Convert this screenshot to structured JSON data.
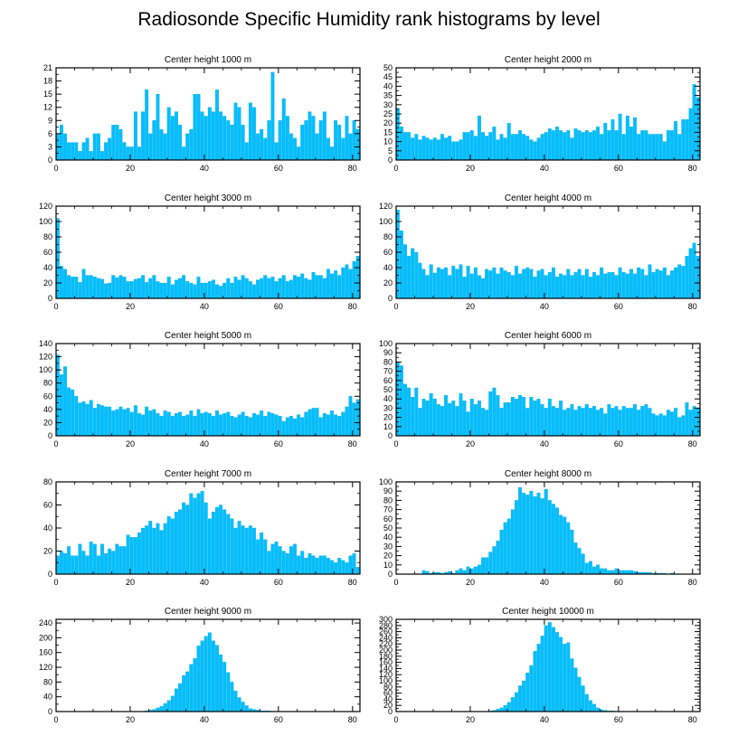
{
  "title": "Radiosonde Specific Humidity rank histograms by level",
  "colors": {
    "bar": "#00bfff",
    "bar_edge": "#0aa6dd",
    "axis": "#000000"
  },
  "chart_data": [
    {
      "type": "bar",
      "title": "Center height 1000 m",
      "xlim": [
        0,
        82
      ],
      "ylim": [
        0,
        21
      ],
      "xticks": [
        0,
        20,
        40,
        60,
        80
      ],
      "yticks": [
        0,
        3,
        6,
        9,
        12,
        15,
        18,
        21
      ],
      "values": [
        6,
        8,
        6,
        4,
        4,
        4,
        2,
        4,
        5,
        2,
        6,
        6,
        2,
        4,
        5,
        8,
        8,
        7,
        4,
        3,
        3,
        11,
        3,
        11,
        16,
        6,
        9,
        15,
        7,
        6,
        12,
        10,
        11,
        8,
        3,
        6,
        7,
        15,
        15,
        11,
        10,
        12,
        11,
        16,
        11,
        10,
        9,
        8,
        13,
        12,
        8,
        4,
        13,
        12,
        6,
        7,
        5,
        9,
        20,
        4,
        9,
        14,
        10,
        6,
        5,
        3,
        8,
        9,
        11,
        10,
        6,
        9,
        11,
        5,
        3,
        9,
        8,
        5,
        10,
        6,
        9,
        7
      ]
    },
    {
      "type": "bar",
      "title": "Center height 2000 m",
      "xlim": [
        0,
        82
      ],
      "ylim": [
        0,
        50
      ],
      "xticks": [
        0,
        20,
        40,
        60,
        80
      ],
      "yticks": [
        0,
        5,
        10,
        15,
        20,
        25,
        30,
        35,
        40,
        45,
        50
      ],
      "values": [
        28,
        18,
        15,
        15,
        12,
        14,
        11,
        13,
        12,
        11,
        12,
        11,
        14,
        12,
        13,
        10,
        10,
        11,
        15,
        15,
        16,
        13,
        24,
        15,
        13,
        15,
        18,
        11,
        14,
        12,
        20,
        14,
        14,
        16,
        14,
        13,
        11,
        10,
        12,
        14,
        15,
        17,
        16,
        18,
        16,
        15,
        16,
        12,
        17,
        16,
        15,
        16,
        15,
        16,
        18,
        14,
        20,
        16,
        22,
        16,
        25,
        14,
        24,
        18,
        23,
        14,
        16,
        16,
        14,
        14,
        14,
        14,
        10,
        16,
        16,
        21,
        14,
        22,
        22,
        28,
        41,
        34
      ]
    },
    {
      "type": "bar",
      "title": "Center height 3000 m",
      "xlim": [
        0,
        82
      ],
      "ylim": [
        0,
        120
      ],
      "xticks": [
        0,
        20,
        40,
        60,
        80
      ],
      "yticks": [
        0,
        20,
        40,
        60,
        80,
        100,
        120
      ],
      "values": [
        104,
        42,
        38,
        30,
        28,
        28,
        21,
        38,
        30,
        30,
        28,
        26,
        25,
        19,
        20,
        30,
        27,
        30,
        28,
        22,
        22,
        25,
        26,
        30,
        21,
        26,
        30,
        22,
        20,
        20,
        28,
        18,
        24,
        26,
        30,
        22,
        20,
        18,
        28,
        20,
        20,
        22,
        24,
        18,
        16,
        20,
        26,
        20,
        28,
        24,
        30,
        26,
        22,
        18,
        24,
        26,
        30,
        26,
        28,
        22,
        26,
        30,
        22,
        24,
        30,
        28,
        32,
        26,
        24,
        34,
        30,
        30,
        26,
        38,
        32,
        36,
        30,
        40,
        44,
        38,
        48,
        55
      ]
    },
    {
      "type": "bar",
      "title": "Center height 4000 m",
      "xlim": [
        0,
        82
      ],
      "ylim": [
        0,
        120
      ],
      "xticks": [
        0,
        20,
        40,
        60,
        80
      ],
      "yticks": [
        0,
        20,
        40,
        60,
        80,
        100,
        120
      ],
      "values": [
        115,
        88,
        70,
        55,
        65,
        60,
        46,
        38,
        30,
        44,
        33,
        40,
        38,
        40,
        30,
        42,
        38,
        44,
        28,
        42,
        32,
        40,
        30,
        26,
        38,
        36,
        40,
        32,
        40,
        36,
        34,
        30,
        42,
        32,
        38,
        40,
        38,
        28,
        36,
        38,
        30,
        34,
        40,
        28,
        32,
        30,
        38,
        30,
        34,
        38,
        30,
        38,
        28,
        34,
        30,
        40,
        32,
        34,
        34,
        30,
        40,
        34,
        32,
        38,
        32,
        40,
        38,
        30,
        44,
        34,
        38,
        36,
        40,
        30,
        36,
        40,
        44,
        42,
        55,
        65,
        72,
        55
      ]
    },
    {
      "type": "bar",
      "title": "Center height 5000 m",
      "xlim": [
        0,
        82
      ],
      "ylim": [
        0,
        140
      ],
      "xticks": [
        0,
        20,
        40,
        60,
        80
      ],
      "yticks": [
        0,
        20,
        40,
        60,
        80,
        100,
        120,
        140
      ],
      "values": [
        123,
        93,
        105,
        73,
        70,
        60,
        50,
        52,
        48,
        54,
        42,
        48,
        46,
        44,
        44,
        38,
        40,
        44,
        40,
        42,
        36,
        46,
        34,
        32,
        44,
        38,
        40,
        34,
        30,
        38,
        36,
        30,
        34,
        36,
        30,
        32,
        38,
        30,
        40,
        34,
        36,
        34,
        30,
        38,
        32,
        34,
        36,
        30,
        28,
        32,
        36,
        30,
        28,
        34,
        32,
        38,
        30,
        36,
        34,
        32,
        30,
        22,
        28,
        30,
        26,
        32,
        28,
        36,
        40,
        42,
        42,
        28,
        34,
        32,
        38,
        32,
        30,
        36,
        44,
        60,
        50,
        55
      ]
    },
    {
      "type": "bar",
      "title": "Center height 6000 m",
      "xlim": [
        0,
        82
      ],
      "ylim": [
        0,
        100
      ],
      "xticks": [
        0,
        20,
        40,
        60,
        80
      ],
      "yticks": [
        0,
        10,
        20,
        30,
        40,
        50,
        60,
        70,
        80,
        90,
        100
      ],
      "values": [
        80,
        76,
        56,
        52,
        42,
        52,
        30,
        40,
        38,
        46,
        40,
        34,
        32,
        44,
        35,
        38,
        32,
        46,
        38,
        26,
        40,
        34,
        38,
        30,
        28,
        48,
        52,
        44,
        30,
        36,
        36,
        42,
        40,
        44,
        42,
        30,
        42,
        38,
        40,
        34,
        30,
        40,
        32,
        30,
        38,
        28,
        30,
        34,
        28,
        32,
        30,
        34,
        30,
        32,
        28,
        30,
        24,
        34,
        30,
        32,
        28,
        32,
        30,
        30,
        34,
        28,
        32,
        34,
        30,
        24,
        22,
        24,
        22,
        28,
        26,
        30,
        20,
        22,
        36,
        28,
        32,
        30
      ]
    },
    {
      "type": "bar",
      "title": "Center height 7000 m",
      "xlim": [
        0,
        82
      ],
      "ylim": [
        0,
        80
      ],
      "xticks": [
        0,
        20,
        40,
        60,
        80
      ],
      "yticks": [
        0,
        20,
        40,
        60,
        80
      ],
      "values": [
        16,
        20,
        18,
        24,
        16,
        16,
        26,
        20,
        16,
        28,
        26,
        16,
        26,
        18,
        22,
        20,
        26,
        24,
        24,
        34,
        32,
        32,
        36,
        40,
        42,
        46,
        40,
        44,
        38,
        44,
        50,
        48,
        54,
        56,
        62,
        60,
        70,
        66,
        70,
        72,
        62,
        48,
        54,
        58,
        60,
        56,
        52,
        48,
        40,
        46,
        42,
        40,
        42,
        40,
        30,
        36,
        30,
        20,
        26,
        28,
        24,
        20,
        18,
        24,
        26,
        16,
        20,
        14,
        18,
        16,
        14,
        16,
        16,
        14,
        12,
        10,
        14,
        12,
        10,
        16,
        18,
        6
      ]
    },
    {
      "type": "bar",
      "title": "Center height 8000 m",
      "xlim": [
        0,
        82
      ],
      "ylim": [
        0,
        100
      ],
      "xticks": [
        0,
        20,
        40,
        60,
        80
      ],
      "yticks": [
        0,
        10,
        20,
        30,
        40,
        50,
        60,
        70,
        80,
        90,
        100
      ],
      "values": [
        0,
        0,
        0,
        0,
        0,
        0,
        0,
        4,
        3,
        1,
        2,
        2,
        1,
        2,
        3,
        1,
        4,
        6,
        4,
        8,
        6,
        8,
        10,
        18,
        18,
        24,
        30,
        36,
        48,
        56,
        60,
        70,
        80,
        94,
        88,
        86,
        90,
        84,
        88,
        82,
        92,
        80,
        76,
        72,
        64,
        62,
        56,
        48,
        34,
        28,
        22,
        12,
        14,
        8,
        10,
        6,
        6,
        4,
        4,
        6,
        4,
        4,
        4,
        4,
        3,
        2,
        2,
        2,
        2,
        1,
        1,
        1,
        1,
        0,
        1,
        0,
        0,
        0,
        0,
        0,
        0,
        0
      ]
    },
    {
      "type": "bar",
      "title": "Center height 9000 m",
      "xlim": [
        0,
        82
      ],
      "ylim": [
        0,
        250
      ],
      "xticks": [
        0,
        20,
        40,
        60,
        80
      ],
      "yticks": [
        0,
        40,
        80,
        120,
        160,
        200,
        240
      ],
      "values": [
        0,
        0,
        0,
        0,
        0,
        0,
        0,
        0,
        0,
        0,
        0,
        0,
        0,
        0,
        0,
        0,
        0,
        0,
        0,
        0,
        0,
        0,
        0,
        0,
        2,
        4,
        6,
        10,
        14,
        22,
        30,
        42,
        62,
        76,
        98,
        108,
        128,
        144,
        178,
        192,
        204,
        214,
        192,
        180,
        154,
        134,
        106,
        80,
        56,
        38,
        26,
        16,
        8,
        6,
        4,
        2,
        2,
        2,
        1,
        1,
        0,
        0,
        0,
        0,
        0,
        0,
        0,
        0,
        0,
        0,
        0,
        0,
        0,
        0,
        0,
        0,
        0,
        0,
        0,
        0,
        0,
        0
      ]
    },
    {
      "type": "bar",
      "title": "Center height 10000 m",
      "xlim": [
        0,
        82
      ],
      "ylim": [
        0,
        300
      ],
      "xticks": [
        0,
        20,
        40,
        60,
        80
      ],
      "yticks": [
        0,
        20,
        40,
        60,
        80,
        100,
        120,
        140,
        160,
        180,
        200,
        220,
        240,
        260,
        280,
        300
      ],
      "values": [
        0,
        0,
        0,
        0,
        0,
        0,
        0,
        0,
        0,
        0,
        0,
        0,
        0,
        0,
        0,
        0,
        0,
        0,
        0,
        0,
        0,
        0,
        0,
        0,
        0,
        2,
        4,
        8,
        12,
        20,
        30,
        46,
        62,
        84,
        100,
        126,
        150,
        196,
        220,
        246,
        280,
        290,
        274,
        258,
        242,
        220,
        224,
        172,
        142,
        112,
        84,
        56,
        36,
        24,
        12,
        6,
        4,
        2,
        2,
        1,
        0,
        0,
        0,
        0,
        0,
        0,
        0,
        0,
        0,
        0,
        0,
        0,
        0,
        0,
        0,
        0,
        0,
        0,
        0,
        0,
        0,
        0
      ]
    }
  ]
}
